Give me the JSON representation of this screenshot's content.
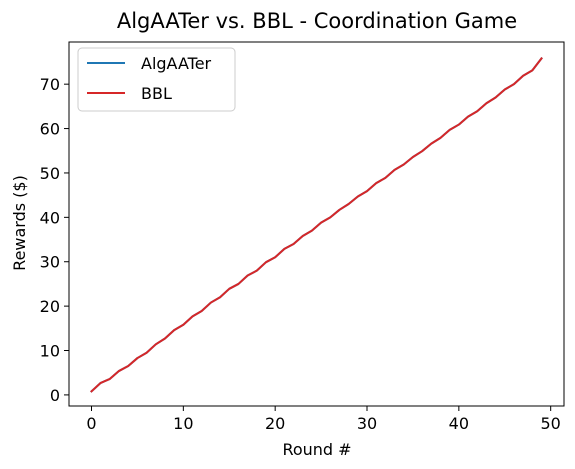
{
  "chart_data": {
    "type": "line",
    "title": "AlgAATer vs. BBL - Coordination Game",
    "xlabel": "Round #",
    "ylabel": "Rewards ($)",
    "xlim": [
      -2.45,
      51.45
    ],
    "ylim": [
      -2.5,
      79.5
    ],
    "xticks": [
      0,
      10,
      20,
      30,
      40,
      50
    ],
    "yticks": [
      0,
      10,
      20,
      30,
      40,
      50,
      60,
      70
    ],
    "grid": false,
    "legend_position": "top-left",
    "series": [
      {
        "name": "AlgAATer",
        "color": "#1f77b4",
        "x": [
          0,
          1,
          2,
          3,
          4,
          5,
          6,
          7,
          8,
          9,
          10,
          11,
          12,
          13,
          14,
          15,
          16,
          17,
          18,
          19,
          20,
          21,
          22,
          23,
          24,
          25,
          26,
          27,
          28,
          29,
          30,
          31,
          32,
          33,
          34,
          35,
          36,
          37,
          38,
          39,
          40,
          41,
          42,
          43,
          44,
          45,
          46,
          47,
          48,
          49
        ],
        "y": [
          0.8,
          2.7,
          3.6,
          5.4,
          6.5,
          8.3,
          9.5,
          11.4,
          12.7,
          14.6,
          15.8,
          17.7,
          18.9,
          20.8,
          22.0,
          23.9,
          25.0,
          26.9,
          28.0,
          29.9,
          31.0,
          32.9,
          34.0,
          35.8,
          37.0,
          38.8,
          40.0,
          41.7,
          43.0,
          44.7,
          45.9,
          47.7,
          48.9,
          50.7,
          51.9,
          53.6,
          54.9,
          56.6,
          57.9,
          59.7,
          60.9,
          62.7,
          63.9,
          65.7,
          67.0,
          68.8,
          70.0,
          71.9,
          73.1,
          75.8
        ]
      },
      {
        "name": "BBL",
        "color": "#d62728",
        "x": [
          0,
          1,
          2,
          3,
          4,
          5,
          6,
          7,
          8,
          9,
          10,
          11,
          12,
          13,
          14,
          15,
          16,
          17,
          18,
          19,
          20,
          21,
          22,
          23,
          24,
          25,
          26,
          27,
          28,
          29,
          30,
          31,
          32,
          33,
          34,
          35,
          36,
          37,
          38,
          39,
          40,
          41,
          42,
          43,
          44,
          45,
          46,
          47,
          48,
          49
        ],
        "y": [
          0.8,
          2.7,
          3.6,
          5.4,
          6.5,
          8.3,
          9.5,
          11.4,
          12.7,
          14.6,
          15.8,
          17.7,
          18.9,
          20.8,
          22.0,
          23.9,
          25.0,
          26.9,
          28.0,
          29.9,
          31.0,
          32.9,
          34.0,
          35.8,
          37.0,
          38.8,
          40.0,
          41.7,
          43.0,
          44.7,
          45.9,
          47.7,
          48.9,
          50.7,
          51.9,
          53.6,
          54.9,
          56.6,
          57.9,
          59.7,
          60.9,
          62.7,
          63.9,
          65.7,
          67.0,
          68.8,
          70.0,
          71.9,
          73.1,
          75.8
        ]
      }
    ]
  }
}
